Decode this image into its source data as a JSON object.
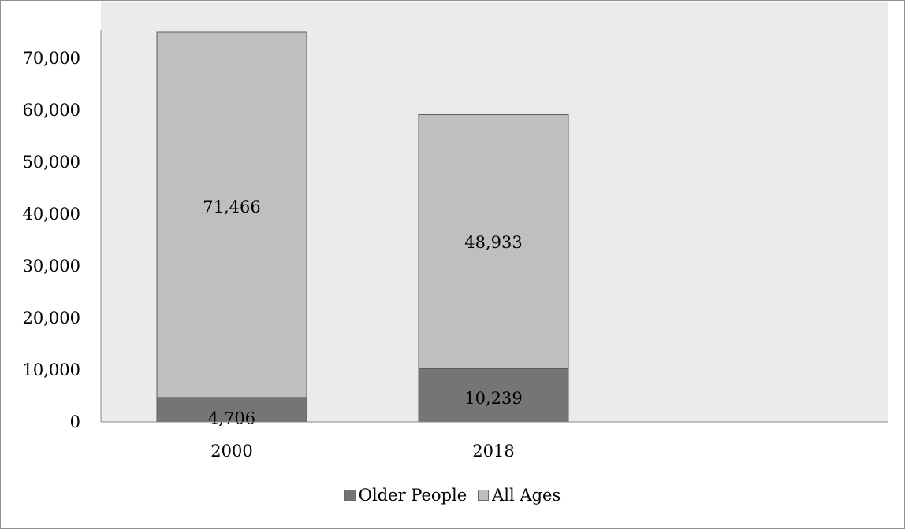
{
  "chart_data": {
    "type": "bar",
    "stacked": true,
    "categories": [
      "2000",
      "2018"
    ],
    "series": [
      {
        "name": "Older People",
        "values": [
          4706,
          10239
        ],
        "labels": [
          "4,706",
          "10,239"
        ],
        "color": "#757575"
      },
      {
        "name": "All Ages",
        "values": [
          71466,
          48933
        ],
        "labels": [
          "71,466",
          "48,933"
        ],
        "color": "#bfbfbf"
      }
    ],
    "yticks": [
      "0",
      "10,000",
      "20,000",
      "30,000",
      "40,000",
      "50,000",
      "60,000",
      "70,000"
    ],
    "ylim": [
      0,
      75000
    ],
    "grid": false,
    "legend": "bottom",
    "plot_background": "#ebebeb"
  }
}
